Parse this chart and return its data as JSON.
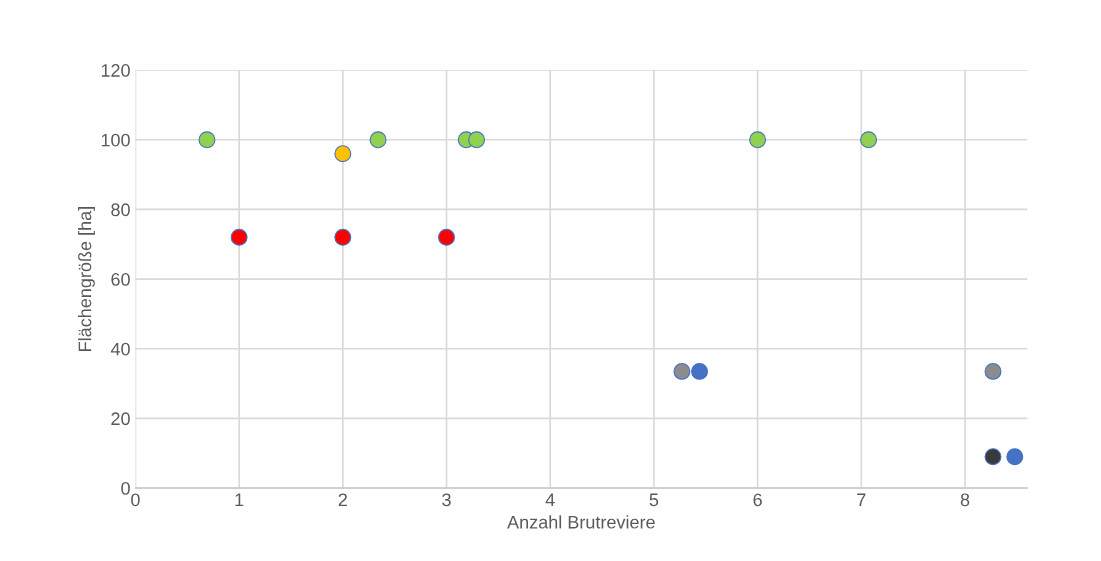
{
  "chart_data": {
    "type": "scatter",
    "xlabel": "Anzahl Brutreviere",
    "ylabel": "Flächengröße [ha]",
    "xlim": [
      0,
      8.6
    ],
    "xticks": [
      0,
      1,
      2,
      3,
      4,
      5,
      6,
      7,
      8
    ],
    "ylim": [
      0,
      120
    ],
    "yticks": [
      0,
      20,
      40,
      60,
      80,
      100,
      120
    ],
    "grid": true,
    "marker": "circle",
    "legend": false,
    "series": [
      {
        "color": "#92d050",
        "x": [
          0.69,
          2.34,
          3.19,
          3.29,
          6.0,
          7.07
        ],
        "values": [
          100,
          100,
          100,
          100,
          100,
          100
        ]
      },
      {
        "color": "#ffc000",
        "x": [
          2.0
        ],
        "values": [
          96
        ]
      },
      {
        "color": "#ff0000",
        "x": [
          1.0,
          2.0,
          3.0
        ],
        "values": [
          72,
          72,
          72
        ]
      },
      {
        "color": "#8c8c8c",
        "x": [
          5.27,
          8.27
        ],
        "values": [
          33.5,
          33.5
        ]
      },
      {
        "color": "#3a3a3a",
        "x": [
          8.27
        ],
        "values": [
          9
        ]
      },
      {
        "color": "#4472c4",
        "x": [
          5.44,
          8.48
        ],
        "values": [
          33.5,
          9
        ]
      }
    ]
  }
}
